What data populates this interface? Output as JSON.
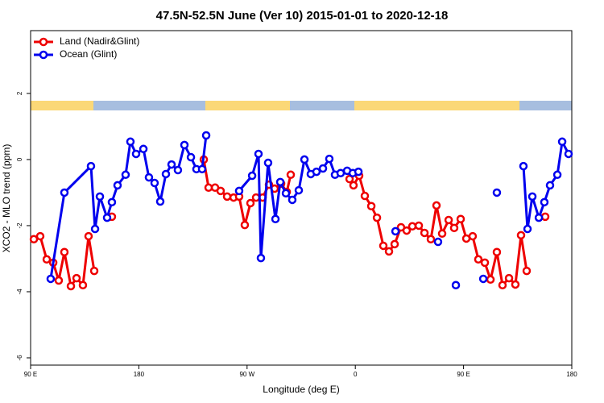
{
  "chart_data": {
    "type": "line",
    "title": "47.5N-52.5N June (Ver 10)   2015-01-01 to 2020-12-18",
    "x_label": "Longitude (deg E)",
    "y_label": "XCO2 - MLO trend (ppm)",
    "xlim": [
      90,
      540
    ],
    "xticks": [
      {
        "value": 90,
        "label": "90 E"
      },
      {
        "value": 180,
        "label": "180"
      },
      {
        "value": 270,
        "label": "90 W"
      },
      {
        "value": 360,
        "label": "0"
      },
      {
        "value": 450,
        "label": "90 E"
      },
      {
        "value": 540,
        "label": "180"
      }
    ],
    "ylim": [
      -6.22,
      3.9
    ],
    "yticks": [
      -6,
      -4,
      -2,
      0,
      2
    ],
    "legend": "top-left",
    "series": [
      {
        "name": "Land (Nadir&Glint)",
        "color": "#ee0000",
        "x": [
          92.7,
          98.0,
          103.4,
          108.8,
          113.4,
          118.1,
          123.5,
          128.2,
          133.5,
          138.2,
          142.9,
          null,
          157.6,
          null,
          234.0,
          238.0,
          243.4,
          248.0,
          253.4,
          258.8,
          263.4,
          268.1,
          272.8,
          277.5,
          282.9,
          288.2,
          292.9,
          298.3,
          303.0,
          306.3,
          null,
          355.2,
          358.5,
          363.2,
          367.9,
          373.3,
          378.0,
          383.3,
          388.0,
          392.7,
          398.0,
          402.7,
          407.4,
          412.8,
          417.5,
          422.8,
          427.5,
          432.2,
          437.6,
          442.2,
          447.6,
          452.3,
          457.6,
          462.3,
          467.7,
          472.4,
          477.7,
          482.4,
          487.8,
          493.1,
          497.8,
          502.5,
          null,
          517.9
        ],
        "values": [
          -2.41,
          -2.32,
          -3.02,
          -3.12,
          -3.66,
          -2.8,
          -3.83,
          -3.59,
          -3.8,
          -2.32,
          -3.37,
          null,
          -1.73,
          null,
          0.0,
          -0.85,
          -0.85,
          -0.95,
          -1.12,
          -1.15,
          -1.12,
          -1.98,
          -1.32,
          -1.15,
          -1.15,
          -0.76,
          -0.88,
          -0.73,
          -0.98,
          -0.46,
          null,
          -0.59,
          -0.78,
          -0.49,
          -1.1,
          -1.41,
          -1.76,
          -2.61,
          -2.78,
          -2.56,
          -2.05,
          -2.15,
          -2.02,
          -2.0,
          -2.22,
          -2.41,
          -1.39,
          -2.24,
          -1.83,
          -2.07,
          -1.8,
          -2.39,
          -2.32,
          -3.02,
          -3.12,
          -3.63,
          -2.8,
          -3.8,
          -3.59,
          -3.78,
          -2.29,
          -3.37,
          null,
          -1.73
        ]
      },
      {
        "name": "Ocean (Glint)",
        "color": "#0000ee",
        "x": [
          106.7,
          118.1,
          140.2,
          143.6,
          147.6,
          153.6,
          157.6,
          162.3,
          169.0,
          173.0,
          177.7,
          183.8,
          188.4,
          193.1,
          197.8,
          202.5,
          207.2,
          212.5,
          217.9,
          223.3,
          227.9,
          232.6,
          236.0,
          null,
          263.4,
          274.2,
          279.5,
          281.5,
          287.5,
          293.6,
          297.6,
          302.3,
          307.6,
          313.0,
          317.7,
          323.0,
          327.7,
          333.1,
          338.4,
          343.1,
          347.8,
          353.2,
          357.9,
          362.6,
          null,
          393.4,
          null,
          428.8,
          null,
          443.6,
          null,
          466.4,
          null,
          477.7,
          null,
          499.8,
          503.2,
          507.2,
          512.6,
          517.2,
          521.9,
          528.0,
          532.0,
          537.3
        ],
        "values": [
          -3.61,
          -1.0,
          -0.2,
          -2.1,
          -1.12,
          -1.76,
          -1.29,
          -0.78,
          -0.46,
          0.54,
          0.17,
          0.32,
          -0.54,
          -0.71,
          -1.27,
          -0.44,
          -0.15,
          -0.32,
          0.44,
          0.07,
          -0.29,
          -0.29,
          0.73,
          null,
          -0.95,
          -0.49,
          0.17,
          -2.98,
          -0.1,
          -1.8,
          -0.68,
          -1.02,
          -1.22,
          -0.93,
          0.0,
          -0.44,
          -0.37,
          -0.27,
          0.02,
          -0.46,
          -0.41,
          -0.34,
          -0.41,
          -0.37,
          null,
          -2.17,
          null,
          -2.49,
          null,
          -3.8,
          null,
          -3.61,
          null,
          -1.0,
          null,
          -0.2,
          -2.1,
          -1.12,
          -1.76,
          -1.29,
          -0.78,
          -0.46,
          0.54,
          0.17
        ]
      }
    ]
  }
}
